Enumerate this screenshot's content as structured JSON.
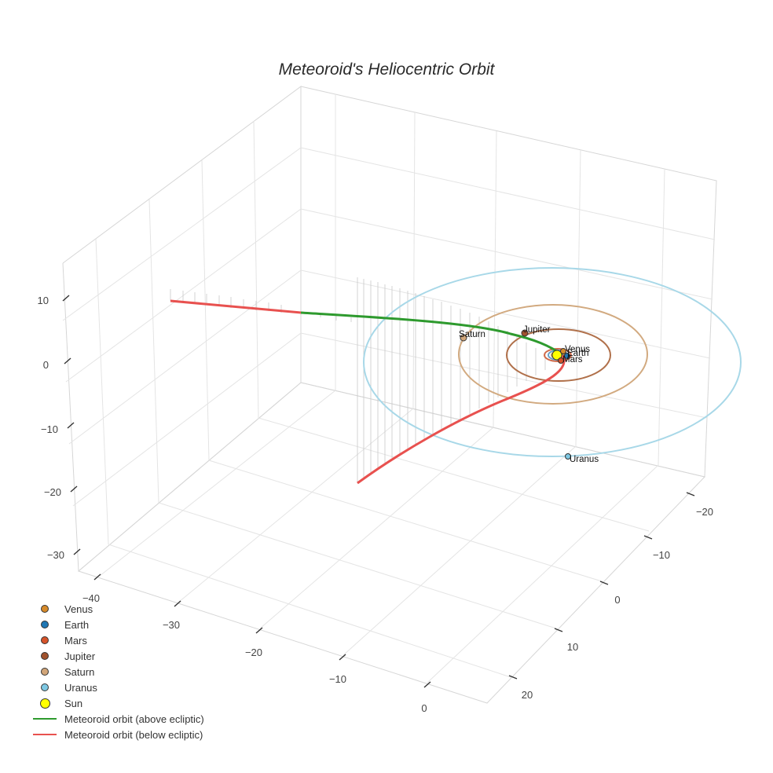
{
  "chart_data": {
    "type": "scatter3d",
    "title": "Meteoroid's Heliocentric Orbit",
    "axes": {
      "x": {
        "ticks": [
          "−40",
          "−30",
          "−20",
          "−10",
          "0"
        ]
      },
      "y": {
        "ticks": [
          "−20",
          "−10",
          "0",
          "10",
          "20"
        ]
      },
      "z": {
        "ticks": [
          "10",
          "0",
          "−10",
          "−20",
          "−30"
        ]
      }
    },
    "planets": [
      {
        "name": "Venus",
        "color": "#d68a2a",
        "orbit_radius_au": 0.72
      },
      {
        "name": "Earth",
        "color": "#1f77b4",
        "orbit_radius_au": 1.0
      },
      {
        "name": "Mars",
        "color": "#d6532a",
        "orbit_radius_au": 1.52
      },
      {
        "name": "Jupiter",
        "color": "#a0522d",
        "orbit_radius_au": 5.2
      },
      {
        "name": "Saturn",
        "color": "#d2a679",
        "orbit_radius_au": 9.5
      },
      {
        "name": "Uranus",
        "color": "#7ec8e3",
        "orbit_radius_au": 19.2
      }
    ],
    "sun": {
      "name": "Sun",
      "color": "#ffff00"
    },
    "series": [
      {
        "name": "Meteoroid orbit (above ecliptic)",
        "color": "#2e9a2e"
      },
      {
        "name": "Meteoroid orbit (below ecliptic)",
        "color": "#e8514f"
      }
    ]
  },
  "legend": {
    "items": [
      {
        "label": "Venus",
        "kind": "dot",
        "color": "#d68a2a"
      },
      {
        "label": "Earth",
        "kind": "dot",
        "color": "#1f77b4"
      },
      {
        "label": "Mars",
        "kind": "dot",
        "color": "#d6532a"
      },
      {
        "label": "Jupiter",
        "kind": "dot",
        "color": "#a0522d"
      },
      {
        "label": "Saturn",
        "kind": "dot",
        "color": "#d2a679"
      },
      {
        "label": "Uranus",
        "kind": "dot",
        "color": "#7ec8e3"
      },
      {
        "label": "Sun",
        "kind": "sun",
        "color": "#ffff00"
      },
      {
        "label": "Meteoroid orbit (above ecliptic)",
        "kind": "line",
        "color": "#2e9a2e"
      },
      {
        "label": "Meteoroid orbit (below ecliptic)",
        "kind": "line",
        "color": "#e8514f"
      }
    ]
  }
}
